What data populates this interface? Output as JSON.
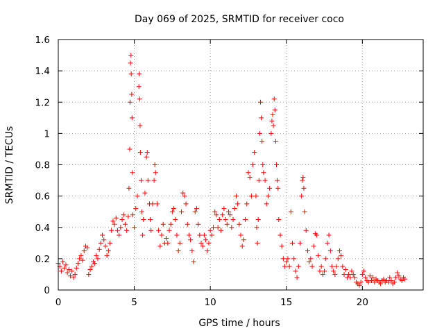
{
  "chart_data": {
    "type": "scatter",
    "title": "Day 069 of 2025, SRMTID for receiver coco",
    "xlabel": "GPS time / hours",
    "ylabel": "SRMTID / TECUs",
    "xlim": [
      0,
      24
    ],
    "ylim": [
      0,
      1.6
    ],
    "grid": true,
    "marker": "+",
    "color": "#ff0000",
    "x_ticks": [
      "0",
      "5",
      "10",
      "15",
      "20"
    ],
    "y_ticks": [
      "0",
      "0.2",
      "0.4",
      "0.6",
      "0.8",
      "1",
      "1.2",
      "1.4",
      "1.6"
    ],
    "series": [
      {
        "name": "SRMTID",
        "points": [
          [
            0.0,
            0.17
          ],
          [
            0.1,
            0.15
          ],
          [
            0.2,
            0.12
          ],
          [
            0.3,
            0.18
          ],
          [
            0.4,
            0.14
          ],
          [
            0.5,
            0.16
          ],
          [
            0.6,
            0.11
          ],
          [
            0.7,
            0.13
          ],
          [
            0.8,
            0.09
          ],
          [
            0.9,
            0.12
          ],
          [
            1.0,
            0.08
          ],
          [
            1.1,
            0.1
          ],
          [
            1.2,
            0.14
          ],
          [
            1.3,
            0.17
          ],
          [
            1.4,
            0.2
          ],
          [
            1.5,
            0.22
          ],
          [
            1.6,
            0.19
          ],
          [
            1.7,
            0.25
          ],
          [
            1.8,
            0.28
          ],
          [
            1.9,
            0.27
          ],
          [
            2.0,
            0.1
          ],
          [
            2.1,
            0.13
          ],
          [
            2.2,
            0.15
          ],
          [
            2.3,
            0.18
          ],
          [
            2.4,
            0.17
          ],
          [
            2.5,
            0.22
          ],
          [
            2.6,
            0.2
          ],
          [
            2.7,
            0.26
          ],
          [
            2.8,
            0.3
          ],
          [
            2.9,
            0.35
          ],
          [
            3.0,
            0.32
          ],
          [
            3.1,
            0.28
          ],
          [
            3.2,
            0.22
          ],
          [
            3.3,
            0.25
          ],
          [
            3.4,
            0.3
          ],
          [
            3.5,
            0.38
          ],
          [
            3.6,
            0.44
          ],
          [
            3.7,
            0.42
          ],
          [
            3.8,
            0.46
          ],
          [
            3.9,
            0.38
          ],
          [
            4.0,
            0.35
          ],
          [
            4.1,
            0.4
          ],
          [
            4.2,
            0.45
          ],
          [
            4.3,
            0.48
          ],
          [
            4.4,
            0.42
          ],
          [
            4.5,
            0.38
          ],
          [
            4.6,
            0.47
          ],
          [
            4.65,
            0.65
          ],
          [
            4.7,
            0.9
          ],
          [
            4.72,
            1.2
          ],
          [
            4.75,
            1.45
          ],
          [
            4.78,
            1.5
          ],
          [
            4.8,
            1.38
          ],
          [
            4.83,
            1.25
          ],
          [
            4.85,
            1.1
          ],
          [
            4.88,
            0.75
          ],
          [
            4.9,
            0.48
          ],
          [
            5.0,
            0.4
          ],
          [
            5.1,
            0.52
          ],
          [
            5.2,
            0.6
          ],
          [
            5.3,
            1.3
          ],
          [
            5.32,
            1.38
          ],
          [
            5.35,
            1.22
          ],
          [
            5.38,
            1.05
          ],
          [
            5.4,
            0.88
          ],
          [
            5.45,
            0.7
          ],
          [
            5.5,
            0.5
          ],
          [
            5.55,
            0.35
          ],
          [
            5.6,
            0.45
          ],
          [
            5.7,
            0.62
          ],
          [
            5.8,
            0.85
          ],
          [
            5.85,
            0.88
          ],
          [
            5.9,
            0.7
          ],
          [
            6.0,
            0.55
          ],
          [
            6.05,
            0.45
          ],
          [
            6.1,
            0.38
          ],
          [
            6.2,
            0.55
          ],
          [
            6.3,
            0.7
          ],
          [
            6.35,
            0.8
          ],
          [
            6.4,
            0.75
          ],
          [
            6.5,
            0.55
          ],
          [
            6.6,
            0.38
          ],
          [
            6.7,
            0.28
          ],
          [
            6.8,
            0.35
          ],
          [
            6.9,
            0.42
          ],
          [
            7.0,
            0.3
          ],
          [
            7.1,
            0.33
          ],
          [
            7.2,
            0.3
          ],
          [
            7.3,
            0.38
          ],
          [
            7.4,
            0.42
          ],
          [
            7.5,
            0.5
          ],
          [
            7.6,
            0.52
          ],
          [
            7.7,
            0.45
          ],
          [
            7.8,
            0.35
          ],
          [
            7.9,
            0.25
          ],
          [
            8.0,
            0.3
          ],
          [
            8.1,
            0.5
          ],
          [
            8.2,
            0.62
          ],
          [
            8.3,
            0.6
          ],
          [
            8.4,
            0.55
          ],
          [
            8.5,
            0.42
          ],
          [
            8.6,
            0.35
          ],
          [
            8.7,
            0.32
          ],
          [
            8.8,
            0.25
          ],
          [
            8.9,
            0.18
          ],
          [
            9.0,
            0.5
          ],
          [
            9.1,
            0.52
          ],
          [
            9.2,
            0.42
          ],
          [
            9.3,
            0.35
          ],
          [
            9.4,
            0.3
          ],
          [
            9.5,
            0.28
          ],
          [
            9.6,
            0.35
          ],
          [
            9.7,
            0.32
          ],
          [
            9.8,
            0.25
          ],
          [
            9.9,
            0.3
          ],
          [
            10.0,
            0.38
          ],
          [
            10.1,
            0.35
          ],
          [
            10.2,
            0.4
          ],
          [
            10.3,
            0.5
          ],
          [
            10.4,
            0.48
          ],
          [
            10.5,
            0.4
          ],
          [
            10.6,
            0.45
          ],
          [
            10.7,
            0.38
          ],
          [
            10.8,
            0.48
          ],
          [
            10.9,
            0.52
          ],
          [
            11.0,
            0.45
          ],
          [
            11.1,
            0.42
          ],
          [
            11.2,
            0.5
          ],
          [
            11.3,
            0.48
          ],
          [
            11.4,
            0.4
          ],
          [
            11.5,
            0.45
          ],
          [
            11.6,
            0.52
          ],
          [
            11.7,
            0.6
          ],
          [
            11.8,
            0.55
          ],
          [
            11.9,
            0.42
          ],
          [
            12.0,
            0.35
          ],
          [
            12.1,
            0.28
          ],
          [
            12.2,
            0.32
          ],
          [
            12.3,
            0.45
          ],
          [
            12.4,
            0.55
          ],
          [
            12.5,
            0.75
          ],
          [
            12.6,
            0.72
          ],
          [
            12.7,
            0.6
          ],
          [
            12.8,
            0.8
          ],
          [
            12.9,
            0.88
          ],
          [
            13.0,
            0.6
          ],
          [
            13.05,
            0.4
          ],
          [
            13.1,
            0.3
          ],
          [
            13.15,
            0.45
          ],
          [
            13.2,
            0.7
          ],
          [
            13.25,
            1.0
          ],
          [
            13.3,
            1.2
          ],
          [
            13.35,
            1.1
          ],
          [
            13.4,
            0.95
          ],
          [
            13.45,
            0.8
          ],
          [
            13.5,
            0.75
          ],
          [
            13.6,
            0.7
          ],
          [
            13.7,
            0.55
          ],
          [
            13.8,
            0.6
          ],
          [
            13.9,
            0.65
          ],
          [
            14.0,
            1.0
          ],
          [
            14.05,
            1.08
          ],
          [
            14.1,
            1.12
          ],
          [
            14.15,
            1.05
          ],
          [
            14.2,
            1.22
          ],
          [
            14.25,
            1.15
          ],
          [
            14.3,
            0.95
          ],
          [
            14.35,
            0.8
          ],
          [
            14.4,
            0.7
          ],
          [
            14.45,
            0.65
          ],
          [
            14.5,
            0.45
          ],
          [
            14.6,
            0.35
          ],
          [
            14.7,
            0.28
          ],
          [
            14.8,
            0.2
          ],
          [
            14.9,
            0.15
          ],
          [
            15.0,
            0.18
          ],
          [
            15.1,
            0.2
          ],
          [
            15.2,
            0.15
          ],
          [
            15.3,
            0.5
          ],
          [
            15.4,
            0.3
          ],
          [
            15.5,
            0.2
          ],
          [
            15.6,
            0.12
          ],
          [
            15.7,
            0.08
          ],
          [
            15.8,
            0.15
          ],
          [
            15.9,
            0.3
          ],
          [
            16.0,
            0.6
          ],
          [
            16.05,
            0.7
          ],
          [
            16.1,
            0.72
          ],
          [
            16.15,
            0.65
          ],
          [
            16.2,
            0.5
          ],
          [
            16.3,
            0.38
          ],
          [
            16.4,
            0.25
          ],
          [
            16.5,
            0.18
          ],
          [
            16.6,
            0.2
          ],
          [
            16.7,
            0.15
          ],
          [
            16.8,
            0.28
          ],
          [
            16.9,
            0.36
          ],
          [
            17.0,
            0.35
          ],
          [
            17.1,
            0.22
          ],
          [
            17.2,
            0.12
          ],
          [
            17.3,
            0.15
          ],
          [
            17.4,
            0.1
          ],
          [
            17.5,
            0.12
          ],
          [
            17.6,
            0.2
          ],
          [
            17.7,
            0.3
          ],
          [
            17.8,
            0.35
          ],
          [
            17.9,
            0.25
          ],
          [
            18.0,
            0.15
          ],
          [
            18.1,
            0.12
          ],
          [
            18.2,
            0.1
          ],
          [
            18.3,
            0.15
          ],
          [
            18.4,
            0.2
          ],
          [
            18.5,
            0.25
          ],
          [
            18.6,
            0.22
          ],
          [
            18.7,
            0.15
          ],
          [
            18.8,
            0.1
          ],
          [
            18.9,
            0.13
          ],
          [
            19.0,
            0.08
          ],
          [
            19.1,
            0.1
          ],
          [
            19.2,
            0.08
          ],
          [
            19.3,
            0.12
          ],
          [
            19.4,
            0.1
          ],
          [
            19.5,
            0.08
          ],
          [
            19.6,
            0.05
          ],
          [
            19.7,
            0.04
          ],
          [
            19.8,
            0.03
          ],
          [
            19.9,
            0.05
          ],
          [
            20.0,
            0.1
          ],
          [
            20.1,
            0.12
          ],
          [
            20.2,
            0.08
          ],
          [
            20.3,
            0.06
          ],
          [
            20.4,
            0.05
          ],
          [
            20.5,
            0.09
          ],
          [
            20.6,
            0.06
          ],
          [
            20.7,
            0.08
          ],
          [
            20.8,
            0.05
          ],
          [
            20.9,
            0.07
          ],
          [
            21.0,
            0.06
          ],
          [
            21.1,
            0.05
          ],
          [
            21.2,
            0.04
          ],
          [
            21.3,
            0.06
          ],
          [
            21.4,
            0.07
          ],
          [
            21.5,
            0.05
          ],
          [
            21.6,
            0.06
          ],
          [
            21.7,
            0.05
          ],
          [
            21.8,
            0.08
          ],
          [
            21.9,
            0.06
          ],
          [
            22.0,
            0.04
          ],
          [
            22.1,
            0.05
          ],
          [
            22.2,
            0.08
          ],
          [
            22.3,
            0.11
          ],
          [
            22.4,
            0.09
          ],
          [
            22.5,
            0.07
          ],
          [
            22.6,
            0.06
          ],
          [
            22.7,
            0.08
          ],
          [
            22.8,
            0.07
          ]
        ]
      }
    ]
  }
}
